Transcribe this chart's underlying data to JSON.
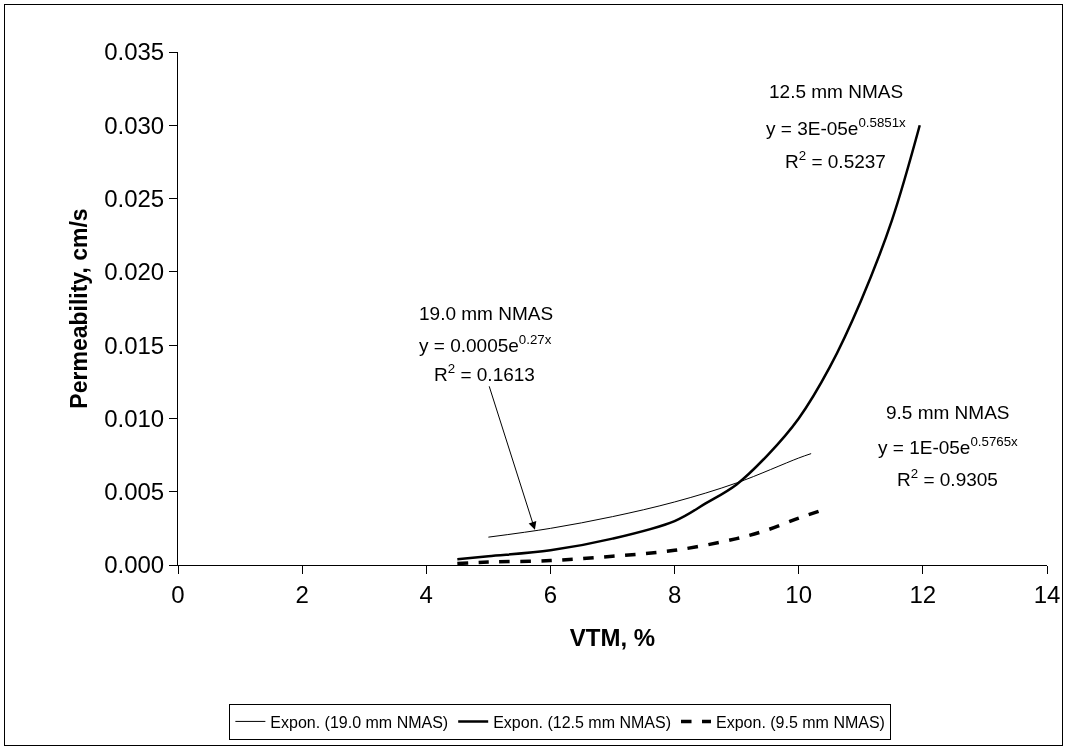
{
  "chart_data": {
    "type": "line",
    "xlabel": "VTM, %",
    "ylabel": "Permeability, cm/s",
    "series": [
      {
        "name": "Expon. (19.0 mm NMAS)",
        "color": "#000000",
        "line_style": "solid",
        "x": [
          5,
          6,
          7,
          8,
          9,
          10,
          10.2
        ],
        "values": [
          0.0019,
          0.0025,
          0.0033,
          0.0043,
          0.0056,
          0.0073,
          0.0076
        ]
      },
      {
        "name": "Expon. (12.5 mm NMAS)",
        "color": "#000000",
        "line_style": "solid",
        "x": [
          4.5,
          5,
          6,
          7,
          8,
          8.5,
          9,
          9.5,
          10,
          10.5,
          11,
          11.5,
          11.95
        ],
        "values": [
          0.0004,
          0.0006,
          0.001,
          0.0018,
          0.003,
          0.0042,
          0.0055,
          0.0075,
          0.01,
          0.0135,
          0.018,
          0.0235,
          0.03
        ]
      },
      {
        "name": "Expon. (9.5 mm NMAS)",
        "color": "#000000",
        "line_style": "dashed",
        "x": [
          4.5,
          5,
          6,
          7,
          8,
          9,
          9.5,
          10,
          10.35
        ],
        "values": [
          0.0001,
          0.0002,
          0.0003,
          0.0006,
          0.001,
          0.0018,
          0.0024,
          0.0032,
          0.0037
        ]
      }
    ],
    "xlim": [
      0,
      14
    ],
    "xticks": [
      0,
      2,
      4,
      6,
      8,
      10,
      12,
      14
    ],
    "ylim": [
      0,
      0.035
    ],
    "yticks": [
      {
        "value": 0,
        "label": "0.000"
      },
      {
        "value": 0.005,
        "label": "0.005"
      },
      {
        "value": 0.01,
        "label": "0.010"
      },
      {
        "value": 0.015,
        "label": "0.015"
      },
      {
        "value": 0.02,
        "label": "0.020"
      },
      {
        "value": 0.025,
        "label": "0.025"
      },
      {
        "value": 0.03,
        "label": "0.030"
      },
      {
        "value": 0.035,
        "label": "0.035"
      }
    ],
    "annotations": [
      "19.0 mm NMAS",
      "y = 0.0005e$^{0.27x}$",
      {
        "text": "R$^{2}$ = 0.1613",
        "x": 5.75,
        "y": 0.0024
      },
      "12.5 mm NMAS",
      "y = 3E-05e$^{0.5851x}$",
      "R$^{2}$ = 0.5237",
      "9.5 mm NMAS",
      "y = 1E-05e$^{0.5765x}$",
      "R$^{2}$ = 0.9305"
    ],
    "grid": false,
    "legend": "bottom",
    "marker": "none"
  }
}
